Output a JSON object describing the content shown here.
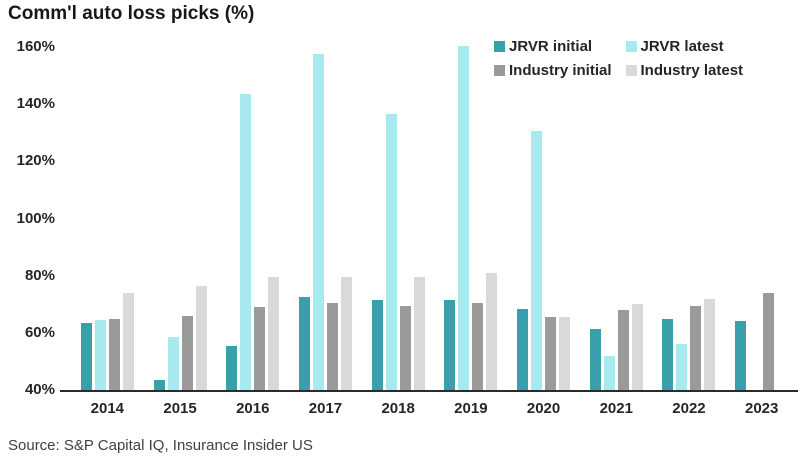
{
  "title": "Comm'l auto loss picks (%)",
  "source": "Source: S&P Capital IQ, Insurance Insider US",
  "chart_data": {
    "type": "bar",
    "title": "Comm'l auto loss picks (%)",
    "categories": [
      "2014",
      "2015",
      "2016",
      "2017",
      "2018",
      "2019",
      "2020",
      "2021",
      "2022",
      "2023"
    ],
    "series": [
      {
        "name": "JRVR initial",
        "color": "#399fAA",
        "values": [
          63.5,
          43.5,
          55.5,
          72.5,
          71.5,
          71.5,
          68.5,
          61.5,
          65,
          64
        ]
      },
      {
        "name": "JRVR latest",
        "color": "#a8e9ef",
        "values": [
          64.5,
          58.5,
          143.5,
          157.5,
          136.5,
          160.5,
          130.5,
          52,
          56,
          null
        ]
      },
      {
        "name": "Industry initial",
        "color": "#9a9a9a",
        "values": [
          65,
          66,
          69,
          70.5,
          69.5,
          70.5,
          65.5,
          68,
          69.5,
          74
        ]
      },
      {
        "name": "Industry latest",
        "color": "#d9d9d9",
        "values": [
          74,
          76.5,
          79.5,
          79.5,
          79.5,
          81,
          65.5,
          70,
          72,
          null
        ]
      }
    ],
    "ylabel": "",
    "xlabel": "",
    "ylim": [
      40,
      160
    ],
    "ytick_labels": [
      "160%",
      "140%",
      "120%",
      "100%",
      "80%",
      "60%",
      "40%"
    ],
    "grid": false,
    "legend_position": "top-right"
  }
}
